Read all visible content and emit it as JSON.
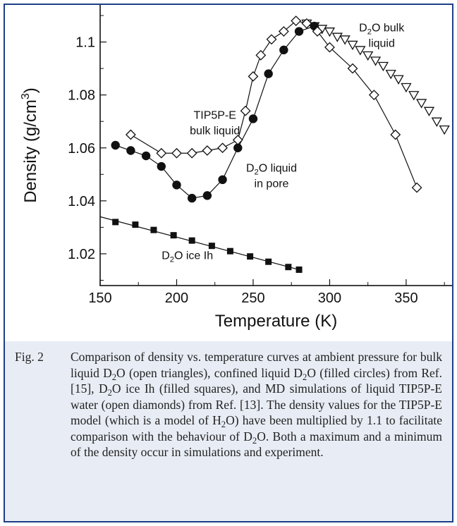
{
  "chart_data": {
    "type": "scatter",
    "xlabel": "Temperature (K)",
    "ylabel": "Density (g/cm3)",
    "xlim": [
      150,
      380
    ],
    "ylim": [
      1.008,
      1.114
    ],
    "xticks": [
      150,
      200,
      250,
      300,
      350
    ],
    "yticks": [
      1.02,
      1.04,
      1.06,
      1.08,
      1.1
    ],
    "xtick_labels": [
      "150",
      "200",
      "250",
      "300",
      "350"
    ],
    "ytick_labels": [
      "1.02",
      "1.04",
      "1.06",
      "1.08",
      "1.1"
    ],
    "grid": false,
    "series": [
      {
        "marker": "open-triangle-down",
        "connected": false,
        "x": [
          285,
          290,
          295,
          300,
          305,
          310,
          315,
          320,
          325,
          330,
          335,
          340,
          345,
          350,
          355,
          360,
          365,
          370,
          375
        ],
        "y": [
          1.107,
          1.106,
          1.105,
          1.104,
          1.102,
          1.101,
          1.099,
          1.097,
          1.095,
          1.093,
          1.091,
          1.088,
          1.086,
          1.083,
          1.08,
          1.077,
          1.074,
          1.07,
          1.067
        ]
      },
      {
        "marker": "filled-circle",
        "connected": true,
        "x": [
          160,
          170,
          180,
          190,
          200,
          210,
          220,
          230,
          240,
          250,
          260,
          270,
          280,
          290
        ],
        "y": [
          1.061,
          1.059,
          1.057,
          1.053,
          1.046,
          1.041,
          1.042,
          1.048,
          1.06,
          1.071,
          1.088,
          1.097,
          1.104,
          1.106
        ]
      },
      {
        "marker": "open-diamond",
        "connected": true,
        "x": [
          170,
          190,
          200,
          210,
          220,
          230,
          240,
          245,
          250,
          255,
          262,
          270,
          278,
          285,
          292,
          300,
          315,
          329,
          343,
          357
        ],
        "y": [
          1.065,
          1.058,
          1.058,
          1.058,
          1.059,
          1.06,
          1.063,
          1.074,
          1.087,
          1.095,
          1.101,
          1.104,
          1.108,
          1.107,
          1.104,
          1.098,
          1.09,
          1.08,
          1.065,
          1.045
        ]
      },
      {
        "marker": "filled-square",
        "connected": true,
        "x": [
          160,
          173,
          185,
          198,
          210,
          223,
          235,
          248,
          260,
          273,
          280
        ],
        "y": [
          1.032,
          1.031,
          1.029,
          1.027,
          1.025,
          1.023,
          1.021,
          1.019,
          1.017,
          1.015,
          1.014
        ],
        "fit_line": {
          "x": [
            150,
            280
          ],
          "y": [
            1.034,
            1.014
          ]
        }
      }
    ],
    "annotations": [
      {
        "text": "TIP5P-E\nbulk liquid",
        "x": 225,
        "y": 1.071
      },
      {
        "text": "D2O liquid\nin pore",
        "x": 262,
        "y": 1.051
      },
      {
        "text": "D2O bulk\nliquid",
        "x": 334,
        "y": 1.104
      },
      {
        "text": "D2O ice Ih",
        "x": 207,
        "y": 1.018
      }
    ]
  },
  "caption": {
    "label": "Fig. 2",
    "text": "Comparison of density vs. temperature curves at ambient pressure for bulk liquid D2O (open triangles), confined liquid D2O (filled circles) from Ref. [15], D2O ice Ih (filled squares), and MD simulations of liquid TIP5P-E water (open diamonds) from Ref. [13]. The density values for the TIP5P-E model (which is a model of H2O) have been multiplied by 1.1 to facilitate comparison with the behaviour of D2O. Both a maximum and a minimum of the density occur in simulations and experiment."
  },
  "colors": {
    "frame": "#1d3f86",
    "background": "#e8edf5",
    "plot_background": "#ffffff",
    "ink": "#111111"
  }
}
